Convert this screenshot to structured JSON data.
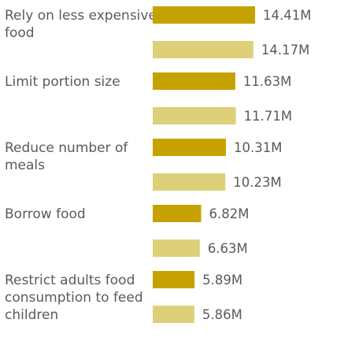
{
  "chart_data": {
    "type": "bar",
    "orientation": "horizontal",
    "categories": [
      "Rely on less expensive food",
      "Limit portion size",
      "Reduce number of meals",
      "Borrow food",
      "Restrict adults food consumption to feed children"
    ],
    "series": [
      {
        "color": "#c6a200",
        "values": [
          14.41,
          11.63,
          10.31,
          6.82,
          5.89
        ],
        "labels": [
          "14.41M",
          "11.63M",
          "10.31M",
          "6.82M",
          "5.89M"
        ]
      },
      {
        "color": "#ddd078",
        "values": [
          14.17,
          11.71,
          10.23,
          6.63,
          5.86
        ],
        "labels": [
          "14.17M",
          "11.71M",
          "10.23M",
          "6.63M",
          "5.86M"
        ]
      }
    ],
    "unit": "M",
    "title": "",
    "xlabel": "",
    "ylabel": "",
    "xlim": [
      0,
      14.41
    ],
    "grid": false,
    "legend": "none"
  }
}
